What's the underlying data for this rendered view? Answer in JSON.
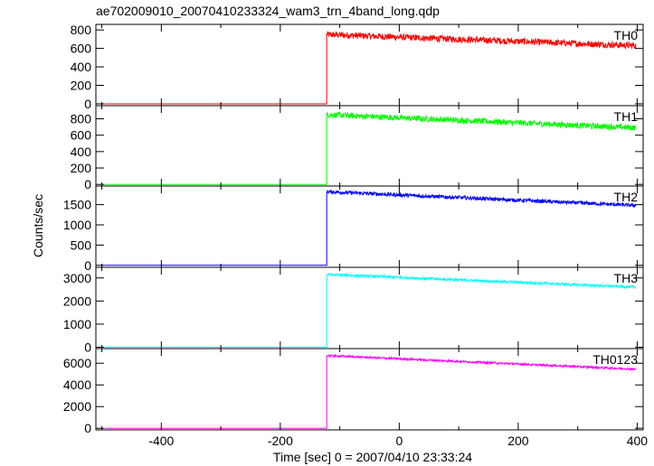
{
  "chart_data": {
    "type": "line",
    "title": "ae702009010_20070410233324_wam3_trn_4band_long.qdp",
    "xlabel": "Time [sec] 0 = 2007/04/10 23:33:24",
    "ylabel": "Counts/sec",
    "xlim": [
      -510,
      410
    ],
    "x_ticks": [
      -400,
      -200,
      0,
      200,
      400
    ],
    "grid": false,
    "legend": "none",
    "onset_time": -122,
    "series": [
      {
        "name": "TH0",
        "color": "#ff0000",
        "ylim": [
          -20,
          860
        ],
        "y_ticks": [
          0,
          200,
          400,
          600,
          800
        ],
        "pre_level": 0,
        "start_level": 750,
        "end_level": 630,
        "noise": 35
      },
      {
        "name": "TH1",
        "color": "#00ff00",
        "ylim": [
          -20,
          960
        ],
        "y_ticks": [
          0,
          200,
          400,
          600,
          800
        ],
        "pre_level": 0,
        "start_level": 850,
        "end_level": 690,
        "noise": 35
      },
      {
        "name": "TH2",
        "color": "#0000ff",
        "ylim": [
          -50,
          1960
        ],
        "y_ticks": [
          0,
          500,
          1000,
          1500
        ],
        "pre_level": 0,
        "start_level": 1820,
        "end_level": 1480,
        "noise": 45
      },
      {
        "name": "TH3",
        "color": "#00ffff",
        "ylim": [
          -60,
          3460
        ],
        "y_ticks": [
          0,
          1000,
          2000,
          3000
        ],
        "pre_level": 0,
        "start_level": 3150,
        "end_level": 2600,
        "noise": 55
      },
      {
        "name": "TH0123",
        "color": "#ff00ff",
        "ylim": [
          -150,
          7350
        ],
        "y_ticks": [
          0,
          2000,
          4000,
          6000
        ],
        "pre_level": 0,
        "start_level": 6700,
        "end_level": 5450,
        "noise": 90
      }
    ]
  }
}
